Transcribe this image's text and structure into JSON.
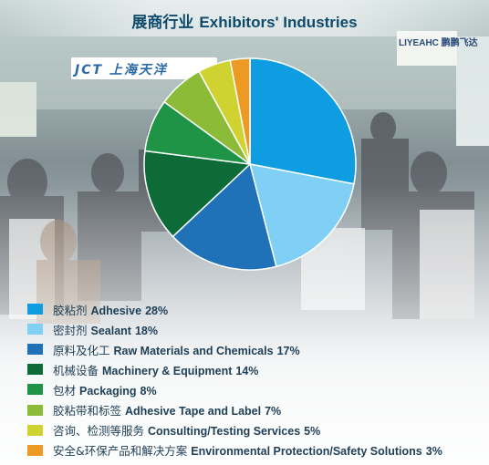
{
  "title": {
    "zh": "展商行业",
    "en": "Exhibitors' Industries"
  },
  "background": {
    "sign_left": "JCT 上海天洋",
    "sign_right": "LIYEAHC 鹏鹏飞达"
  },
  "chart_data": {
    "type": "pie",
    "title": "展商行业 Exhibitors' Industries",
    "legend_position": "bottom-left",
    "start_angle": "12 o'clock",
    "direction": "clockwise",
    "slices": [
      {
        "zh": "胶粘剂",
        "en": "Adhesive",
        "value": 28,
        "label": "28%",
        "color": "#0e9de0"
      },
      {
        "zh": "密封剂",
        "en": "Sealant",
        "value": 18,
        "label": "18%",
        "color": "#7fd0f4"
      },
      {
        "zh": "原料及化工",
        "en": "Raw Materials and Chemicals",
        "value": 17,
        "label": "17%",
        "color": "#1f71b8"
      },
      {
        "zh": "机械设备",
        "en": "Machinery & Equipment",
        "value": 14,
        "label": "14%",
        "color": "#0d6b38"
      },
      {
        "zh": "包材",
        "en": "Packaging",
        "value": 8,
        "label": "8%",
        "color": "#1f9446"
      },
      {
        "zh": "胶粘带和标签",
        "en": "Adhesive Tape and Label",
        "value": 7,
        "label": "7%",
        "color": "#8cbb37"
      },
      {
        "zh": "咨询、检测等服务",
        "en": "Consulting/Testing Services",
        "value": 5,
        "label": "5%",
        "color": "#cfd231"
      },
      {
        "zh": "安全&环保产品和解决方案",
        "en": "Environmental Protection/Safety Solutions",
        "value": 3,
        "label": "3%",
        "color": "#ec9a23"
      }
    ]
  }
}
